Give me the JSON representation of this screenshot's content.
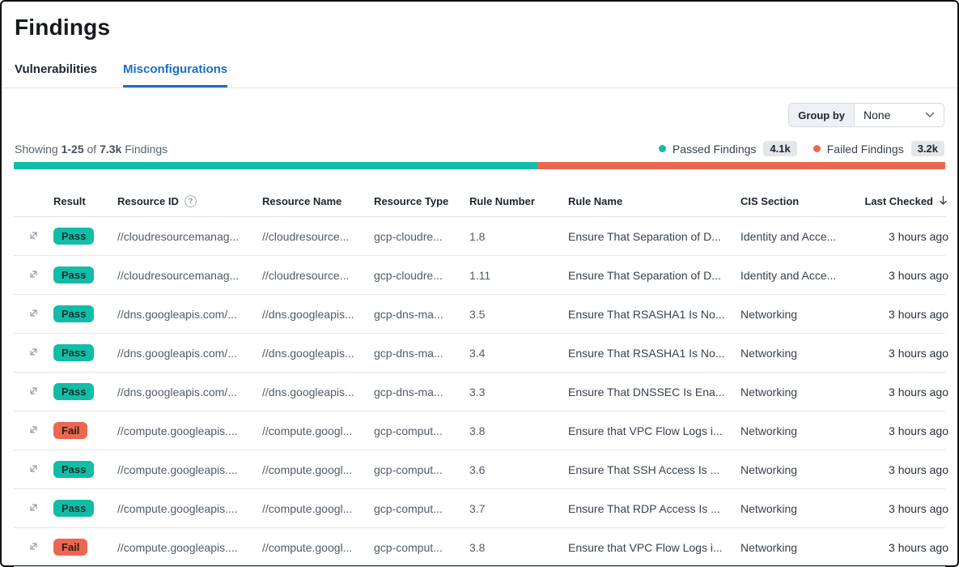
{
  "page": {
    "title": "Findings"
  },
  "tabs": [
    {
      "label": "Vulnerabilities"
    },
    {
      "label": "Misconfigurations"
    }
  ],
  "toolbar": {
    "group_by_label": "Group by",
    "group_by_value": "None"
  },
  "summary": {
    "showing_prefix": "Showing",
    "range": "1-25",
    "of_word": "of",
    "total": "7.3k",
    "findings_word": "Findings",
    "passed_label": "Passed Findings",
    "passed_count": "4.1k",
    "failed_label": "Failed Findings",
    "failed_count": "3.2k",
    "passed_pct": 56.2,
    "failed_pct": 43.8
  },
  "icons": {
    "help": "?"
  },
  "colors": {
    "passed": "#12BCA6",
    "failed": "#EA6852",
    "active_tab": "#1B6FC4"
  },
  "table": {
    "columns": [
      "Result",
      "Resource ID",
      "Resource Name",
      "Resource Type",
      "Rule Number",
      "Rule Name",
      "CIS Section",
      "Last Checked"
    ],
    "rows": [
      {
        "result": "Pass",
        "resource_id": "//cloudresourcemanag...",
        "resource_name": "//cloudresource...",
        "resource_type": "gcp-cloudre...",
        "rule_number": "1.8",
        "rule_name": "Ensure That Separation of D...",
        "cis_section": "Identity and Acce...",
        "last_checked": "3 hours ago"
      },
      {
        "result": "Pass",
        "resource_id": "//cloudresourcemanag...",
        "resource_name": "//cloudresource...",
        "resource_type": "gcp-cloudre...",
        "rule_number": "1.11",
        "rule_name": "Ensure That Separation of D...",
        "cis_section": "Identity and Acce...",
        "last_checked": "3 hours ago"
      },
      {
        "result": "Pass",
        "resource_id": "//dns.googleapis.com/...",
        "resource_name": "//dns.googleapis...",
        "resource_type": "gcp-dns-ma...",
        "rule_number": "3.5",
        "rule_name": "Ensure That RSASHA1 Is No...",
        "cis_section": "Networking",
        "last_checked": "3 hours ago"
      },
      {
        "result": "Pass",
        "resource_id": "//dns.googleapis.com/...",
        "resource_name": "//dns.googleapis...",
        "resource_type": "gcp-dns-ma...",
        "rule_number": "3.4",
        "rule_name": "Ensure That RSASHA1 Is No...",
        "cis_section": "Networking",
        "last_checked": "3 hours ago"
      },
      {
        "result": "Pass",
        "resource_id": "//dns.googleapis.com/...",
        "resource_name": "//dns.googleapis...",
        "resource_type": "gcp-dns-ma...",
        "rule_number": "3.3",
        "rule_name": "Ensure That DNSSEC Is Ena...",
        "cis_section": "Networking",
        "last_checked": "3 hours ago"
      },
      {
        "result": "Fail",
        "resource_id": "//compute.googleapis....",
        "resource_name": "//compute.googl...",
        "resource_type": "gcp-comput...",
        "rule_number": "3.8",
        "rule_name": "Ensure that VPC Flow Logs i...",
        "cis_section": "Networking",
        "last_checked": "3 hours ago"
      },
      {
        "result": "Pass",
        "resource_id": "//compute.googleapis....",
        "resource_name": "//compute.googl...",
        "resource_type": "gcp-comput...",
        "rule_number": "3.6",
        "rule_name": "Ensure That SSH Access Is ...",
        "cis_section": "Networking",
        "last_checked": "3 hours ago"
      },
      {
        "result": "Pass",
        "resource_id": "//compute.googleapis....",
        "resource_name": "//compute.googl...",
        "resource_type": "gcp-comput...",
        "rule_number": "3.7",
        "rule_name": "Ensure That RDP Access Is ...",
        "cis_section": "Networking",
        "last_checked": "3 hours ago"
      },
      {
        "result": "Fail",
        "resource_id": "//compute.googleapis....",
        "resource_name": "//compute.googl...",
        "resource_type": "gcp-comput...",
        "rule_number": "3.8",
        "rule_name": "Ensure that VPC Flow Logs i...",
        "cis_section": "Networking",
        "last_checked": "3 hours ago"
      }
    ]
  }
}
